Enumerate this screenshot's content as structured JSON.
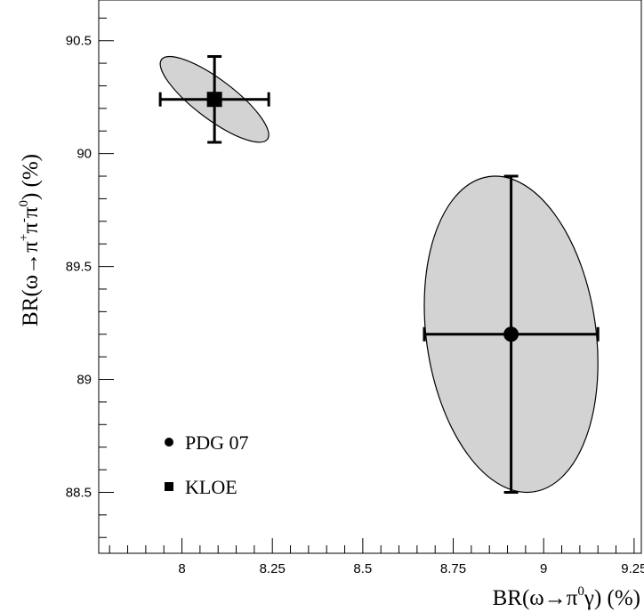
{
  "chart_data": {
    "type": "scatter",
    "title": "",
    "x_axis": {
      "range": [
        7.77,
        9.27
      ],
      "major_ticks": [
        8,
        8.25,
        8.5,
        8.75,
        9,
        9.25
      ],
      "tick_labels": [
        "8",
        "8.25",
        "8.5",
        "8.75",
        "9",
        "9.25"
      ],
      "label_parts": [
        "BR(ω→π",
        "0",
        "γ) (%)"
      ]
    },
    "y_axis": {
      "range": [
        88.23,
        90.68
      ],
      "major_ticks": [
        88.5,
        89,
        89.5,
        90,
        90.5
      ],
      "tick_labels": [
        "88.5",
        "89",
        "89.5",
        "90",
        "90.5"
      ],
      "label_parts": [
        "BR(ω→π",
        "+",
        "π",
        "-",
        "π",
        "0",
        ") (%)"
      ]
    },
    "grid": false,
    "legend_position": "bottom-left",
    "series": [
      {
        "name": "PDG 07",
        "marker": "circle",
        "x": 8.91,
        "y": 89.2,
        "x_err": [
          8.67,
          9.15
        ],
        "y_err": [
          88.5,
          89.9
        ],
        "ellipse": {
          "x_range": [
            8.67,
            9.15
          ],
          "y_range": [
            88.5,
            89.9
          ],
          "tilt_deg": 8
        }
      },
      {
        "name": "KLOE",
        "marker": "square",
        "x": 8.09,
        "y": 90.24,
        "x_err": [
          7.94,
          8.24
        ],
        "y_err": [
          90.05,
          90.43
        ],
        "ellipse": {
          "x_range": [
            7.94,
            8.24
          ],
          "y_range": [
            90.05,
            90.43
          ],
          "tilt_deg": 37
        }
      }
    ],
    "colors": {
      "ellipse_fill": "#d3d3d3",
      "line": "#000000"
    }
  }
}
